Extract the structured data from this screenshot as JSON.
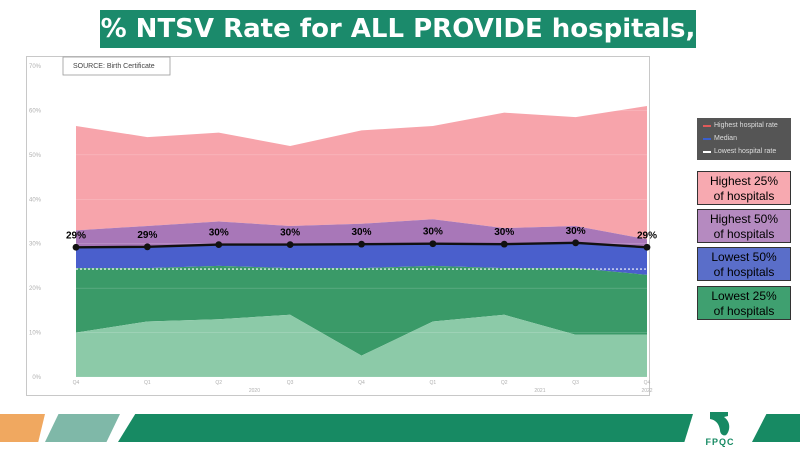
{
  "title": "% NTSV Rate for ALL PROVIDE hospitals,",
  "source_label": "SOURCE: Birth Certificate",
  "legend": [
    {
      "label": "Highest hospital rate",
      "color": "#e05a5a"
    },
    {
      "label": "Median",
      "color": "#3a5fcd"
    },
    {
      "label": "Lowest hospital rate",
      "color": "#ffffff"
    }
  ],
  "quartile_boxes": [
    {
      "line1": "Highest 25%",
      "line2": "of hospitals",
      "color": "#f7a9b0"
    },
    {
      "line1": "Highest 50%",
      "line2": "of hospitals",
      "color": "#b58ac0"
    },
    {
      "line1": "Lowest 50%",
      "line2": "of hospitals",
      "color": "#5a6ec9"
    },
    {
      "line1": "Lowest 25%",
      "line2": "of hospitals",
      "color": "#3fa070"
    }
  ],
  "logo_text": "FPQC",
  "chart_data": {
    "type": "area",
    "y_ticks": [
      "0%",
      "10%",
      "20%",
      "30%",
      "40%",
      "50%",
      "60%",
      "70%"
    ],
    "ylim": [
      0,
      70
    ],
    "x_ticks": [
      "Q4 ",
      "Q1 ",
      "Q2 ",
      "Q3 ",
      "Q4 ",
      "Q1 ",
      "Q2 ",
      "Q3 ",
      "Q4 "
    ],
    "x_year_labels": [
      {
        "label": "2020",
        "index": 2.5
      },
      {
        "label": "2021",
        "index": 6.5
      },
      {
        "label": "2022",
        "index": 8
      }
    ],
    "series": [
      {
        "name": "Highest hospital rate",
        "values": [
          56.5,
          54,
          55,
          52,
          55.5,
          56.5,
          59.5,
          58.5,
          61
        ]
      },
      {
        "name": "Highest 25% of hospitals",
        "values": [
          33,
          34,
          35,
          34,
          34.5,
          35.5,
          33.5,
          34,
          31
        ]
      },
      {
        "name": "Median",
        "values": [
          29.2,
          29.3,
          29.8,
          29.8,
          29.9,
          30,
          29.9,
          30.2,
          29.2
        ]
      },
      {
        "name": "Lowest 50% of hospitals",
        "values": [
          24.5,
          24.5,
          25,
          24.5,
          24.5,
          25,
          24.5,
          24.5,
          23
        ]
      },
      {
        "name": "Lowest hospital rate",
        "values": [
          10,
          12.5,
          13,
          14,
          4.8,
          12.5,
          14,
          9.5,
          9.5
        ]
      }
    ],
    "dashed_reference": 24.3,
    "median_labels": [
      "29%",
      "29%",
      "30%",
      "30%",
      "30%",
      "30%",
      "30%",
      "30%",
      "29%"
    ]
  }
}
